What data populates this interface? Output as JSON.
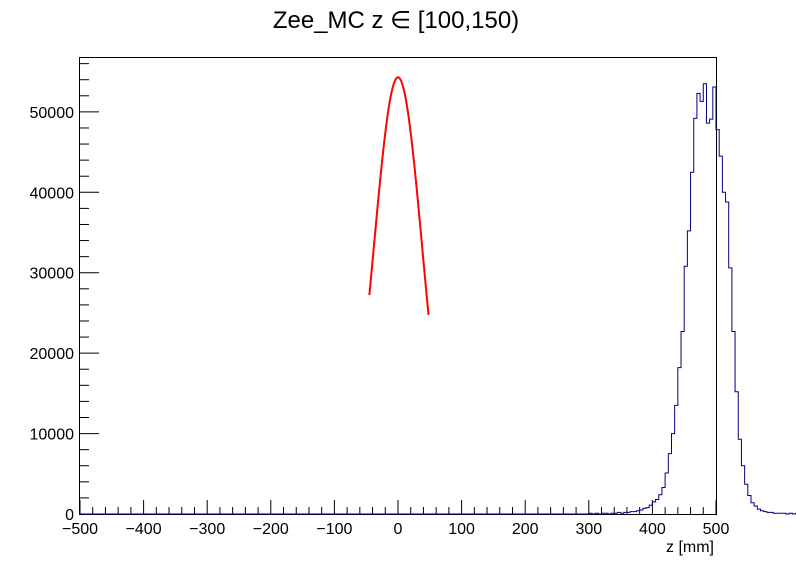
{
  "chart_data": {
    "type": "histogram",
    "title": "Zee_MC z ∈ [100,150)",
    "xlabel": "z [mm]",
    "ylabel": "",
    "xlim": [
      -500,
      500
    ],
    "ylim": [
      0,
      56700
    ],
    "x_ticks": [
      -500,
      -400,
      -300,
      -200,
      -100,
      0,
      100,
      200,
      300,
      400,
      500
    ],
    "x_tick_labels": [
      "−500",
      "−400",
      "−300",
      "−200",
      "−100",
      "0",
      "100",
      "200",
      "300",
      "400",
      "500"
    ],
    "y_ticks": [
      0,
      10000,
      20000,
      30000,
      40000,
      50000
    ],
    "y_tick_labels": [
      "0",
      "10000",
      "20000",
      "30000",
      "40000",
      "50000"
    ],
    "grid": false,
    "bin_width": 5,
    "bin_start": -500,
    "series": [
      {
        "style": "step",
        "color": "#000080",
        "values": [
          0,
          0,
          0,
          0,
          0,
          0,
          0,
          0,
          0,
          0,
          0,
          0,
          0,
          0,
          0,
          0,
          0,
          0,
          0,
          0,
          0,
          0,
          0,
          0,
          0,
          0,
          0,
          0,
          0,
          0,
          0,
          0,
          0,
          0,
          0,
          0,
          0,
          0,
          0,
          0,
          0,
          0,
          0,
          0,
          0,
          0,
          0,
          0,
          0,
          0,
          0,
          0,
          0,
          0,
          0,
          0,
          0,
          0,
          0,
          0,
          0,
          0,
          0,
          0,
          0,
          0,
          0,
          0,
          0,
          0,
          0,
          0,
          0,
          0,
          0,
          0,
          0,
          0,
          0,
          0,
          0,
          0,
          0,
          0,
          0,
          0,
          0,
          0,
          0,
          0,
          0,
          0,
          0,
          0,
          0,
          0,
          0,
          0,
          0,
          0,
          0,
          0,
          0,
          0,
          0,
          0,
          0,
          0,
          0,
          0,
          0,
          0,
          0,
          0,
          0,
          0,
          0,
          0,
          0,
          0,
          0,
          0,
          0,
          0,
          0,
          0,
          0,
          0,
          0,
          0,
          0,
          0,
          0,
          0,
          0,
          0,
          0,
          0,
          0,
          0,
          0,
          0,
          0,
          0,
          0,
          0,
          0,
          0,
          0,
          0,
          0,
          0,
          0,
          0,
          0,
          0,
          0,
          0,
          0,
          0,
          100,
          0,
          100,
          0,
          100,
          100,
          0,
          100,
          100,
          200,
          100,
          200,
          200,
          300,
          300,
          400,
          500,
          700,
          800,
          1100,
          1500,
          1800,
          2400,
          3300,
          5100,
          7500,
          10000,
          13500,
          18200,
          22700,
          30800,
          35200,
          42500,
          49200,
          52300,
          51300,
          53500,
          48600,
          49100,
          53100,
          47800,
          44500,
          40000,
          38800,
          30600,
          22700,
          15200,
          9300,
          6000,
          3700,
          2300,
          1400,
          1000,
          600,
          400,
          300,
          200,
          200,
          100,
          100,
          100,
          100,
          0,
          100,
          0,
          100,
          0,
          0,
          0,
          0,
          0,
          0,
          0,
          0,
          0,
          0,
          0,
          0,
          0,
          0,
          0,
          0,
          0,
          0,
          0,
          0,
          0,
          0,
          0,
          0,
          0,
          0,
          0,
          0,
          0,
          0,
          0,
          0,
          0,
          0,
          0,
          0,
          0,
          0,
          0,
          0,
          0,
          0,
          0,
          0,
          0,
          0,
          0,
          0,
          0,
          0,
          0,
          0,
          0,
          0,
          0,
          0,
          0,
          0,
          0,
          0,
          0,
          0,
          0,
          0,
          0,
          0,
          0,
          0,
          0,
          0,
          0,
          0,
          0,
          0,
          0,
          0,
          0,
          0,
          0,
          0,
          0,
          0,
          0,
          0,
          0,
          0,
          0,
          0,
          0,
          0,
          0,
          0,
          0,
          0,
          0,
          0,
          0,
          0,
          0,
          0,
          0,
          0,
          0,
          0,
          0,
          0,
          0,
          0,
          0,
          0,
          0,
          0,
          0,
          0,
          0,
          0,
          0,
          0,
          0,
          0,
          0,
          0,
          0,
          0,
          0,
          0,
          0,
          0,
          0,
          0,
          0,
          0,
          0,
          0,
          0,
          0
        ]
      },
      {
        "style": "fit-curve",
        "color": "#ff0000",
        "function": "gaussian",
        "amplitude": 54300,
        "mean": 0,
        "sigma": 38.3,
        "x_range": [
          -45,
          48
        ]
      }
    ]
  }
}
